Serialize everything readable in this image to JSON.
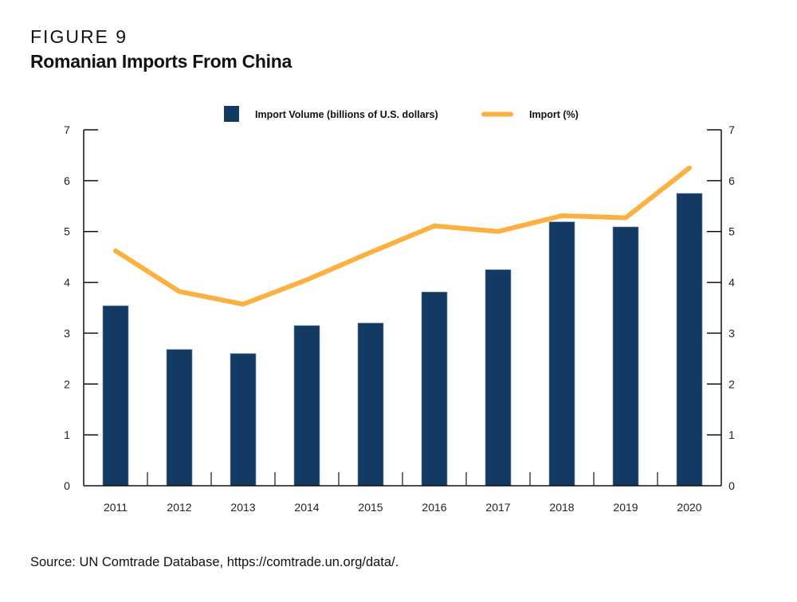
{
  "figure": {
    "label": "FIGURE 9",
    "title": "Romanian Imports From China",
    "source": "Source: UN Comtrade Database, https://comtrade.un.org/data/."
  },
  "colors": {
    "bar": "#133a62",
    "line": "#fbb040",
    "axis": "#111111"
  },
  "chart_data": {
    "type": "bar",
    "title": "Romanian Imports From China",
    "categories": [
      "2011",
      "2012",
      "2013",
      "2014",
      "2015",
      "2016",
      "2017",
      "2018",
      "2019",
      "2020"
    ],
    "series": [
      {
        "name": "Import Volume (billions of U.S. dollars)",
        "type": "bar",
        "axis": "left",
        "values": [
          3.54,
          2.68,
          2.6,
          3.15,
          3.2,
          3.81,
          4.25,
          5.19,
          5.09,
          5.75
        ]
      },
      {
        "name": "Import (%)",
        "type": "line",
        "axis": "right",
        "values": [
          4.62,
          3.82,
          3.57,
          4.05,
          4.59,
          5.11,
          5.0,
          5.31,
          5.27,
          6.25
        ]
      }
    ],
    "xlabel": "",
    "ylabel": "",
    "ylabel_right": "",
    "ylim": [
      0,
      7
    ],
    "ylim_right": [
      0,
      7
    ],
    "yticks": [
      "0",
      "1",
      "2",
      "3",
      "4",
      "5",
      "6",
      "7"
    ],
    "yticks_right": [
      "0",
      "1",
      "2",
      "3",
      "4",
      "5",
      "6",
      "7"
    ],
    "grid": false,
    "legend": {
      "position": "top-center",
      "entries": [
        "Import Volume (billions of U.S. dollars)",
        "Import (%)"
      ]
    }
  }
}
